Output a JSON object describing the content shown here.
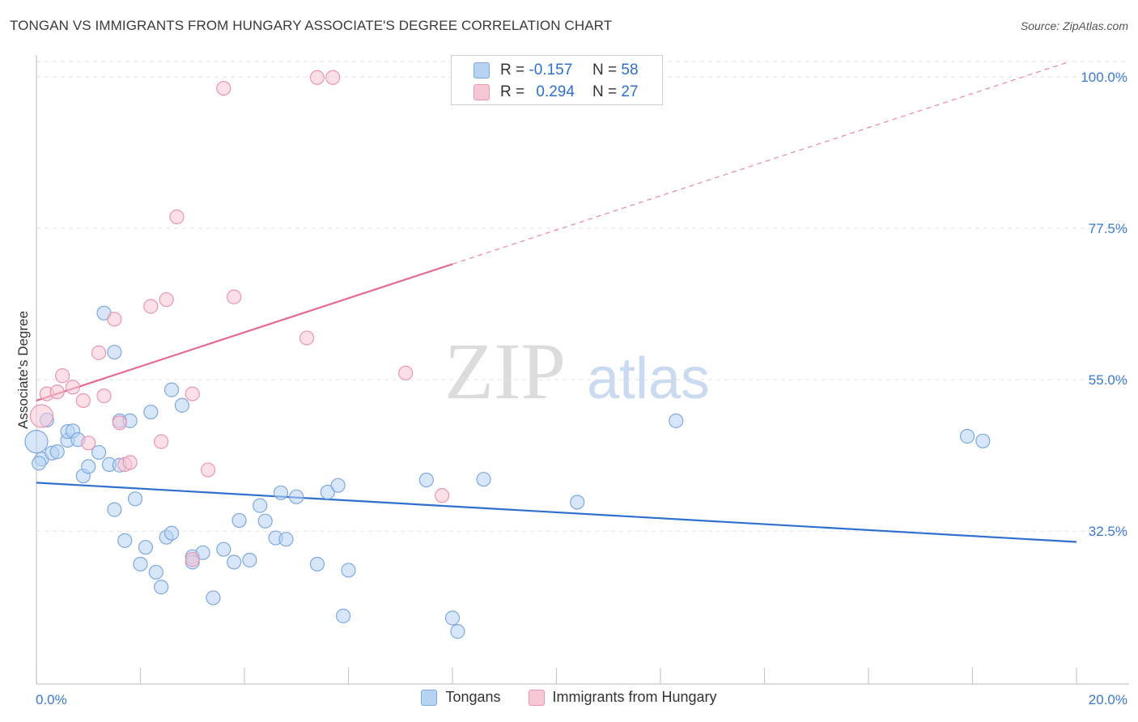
{
  "title": "TONGAN VS IMMIGRANTS FROM HUNGARY ASSOCIATE'S DEGREE CORRELATION CHART",
  "source": "Source: ZipAtlas.com",
  "watermark": {
    "zip": "ZIP",
    "atlas": "atlas"
  },
  "colors": {
    "blue_fill": "#b6d3f4",
    "blue_stroke": "#7ea9dd",
    "blue_line": "#2f6fce",
    "pink_fill": "#f8c7d6",
    "pink_stroke": "#ea96b1",
    "pink_line": "#e46b92",
    "tick_label": "#3b78d0"
  },
  "stats": [
    {
      "r_label": "R =",
      "r_value": "-0.157",
      "n_label": "N =",
      "n_value": "58"
    },
    {
      "r_label": "R =",
      "r_value": "0.294",
      "n_label": "N =",
      "n_value": "27"
    }
  ],
  "legend": [
    "Tongans",
    "Immigrants from Hungary"
  ],
  "chart_data": {
    "type": "scatter",
    "title": "TONGAN VS IMMIGRANTS FROM HUNGARY ASSOCIATE'S DEGREE CORRELATION CHART",
    "xlabel": "",
    "ylabel": "Associate's Degree",
    "xlim": [
      0,
      20
    ],
    "ylim": [
      11,
      103
    ],
    "x_tick_labels": [
      "0.0%",
      "20.0%"
    ],
    "y_ticks": [
      32.5,
      55.0,
      77.5,
      100.0
    ],
    "y_tick_labels": [
      "32.5%",
      "55.0%",
      "77.5%",
      "100.0%"
    ],
    "grid": true,
    "legend_position": "bottom-center",
    "series": [
      {
        "name": "Tongans",
        "color": "blue",
        "r": -0.157,
        "n": 58,
        "trend": {
          "x": [
            0,
            20
          ],
          "y": [
            39.7,
            30.9
          ],
          "dashed_from": null
        },
        "points": [
          [
            0.0,
            45.8
          ],
          [
            0.1,
            43.2
          ],
          [
            0.2,
            49.0
          ],
          [
            0.3,
            44.1
          ],
          [
            0.4,
            44.3
          ],
          [
            0.6,
            46.0
          ],
          [
            0.6,
            47.3
          ],
          [
            0.7,
            47.4
          ],
          [
            0.8,
            46.1
          ],
          [
            0.9,
            40.7
          ],
          [
            1.0,
            42.1
          ],
          [
            1.2,
            44.2
          ],
          [
            1.3,
            64.9
          ],
          [
            1.5,
            59.1
          ],
          [
            1.4,
            42.4
          ],
          [
            1.5,
            35.7
          ],
          [
            1.6,
            42.3
          ],
          [
            1.6,
            48.9
          ],
          [
            1.7,
            31.1
          ],
          [
            1.8,
            48.9
          ],
          [
            1.9,
            37.3
          ],
          [
            2.0,
            27.6
          ],
          [
            2.1,
            30.1
          ],
          [
            2.2,
            50.2
          ],
          [
            2.3,
            26.4
          ],
          [
            2.4,
            24.2
          ],
          [
            2.5,
            31.6
          ],
          [
            2.6,
            32.2
          ],
          [
            2.6,
            53.5
          ],
          [
            2.8,
            51.2
          ],
          [
            3.0,
            28.7
          ],
          [
            3.0,
            27.9
          ],
          [
            3.2,
            29.3
          ],
          [
            3.4,
            22.6
          ],
          [
            3.6,
            29.8
          ],
          [
            3.8,
            27.9
          ],
          [
            3.9,
            34.1
          ],
          [
            4.1,
            28.2
          ],
          [
            4.3,
            36.3
          ],
          [
            4.4,
            34.0
          ],
          [
            4.6,
            31.5
          ],
          [
            4.7,
            38.2
          ],
          [
            4.8,
            31.3
          ],
          [
            5.0,
            37.6
          ],
          [
            5.4,
            27.6
          ],
          [
            5.6,
            38.3
          ],
          [
            5.8,
            39.3
          ],
          [
            5.9,
            19.9
          ],
          [
            6.0,
            26.7
          ],
          [
            7.5,
            40.1
          ],
          [
            8.0,
            19.6
          ],
          [
            8.1,
            17.6
          ],
          [
            8.6,
            40.2
          ],
          [
            10.4,
            36.8
          ],
          [
            12.3,
            48.9
          ],
          [
            17.9,
            46.6
          ],
          [
            18.2,
            45.9
          ],
          [
            0.05,
            42.6
          ]
        ]
      },
      {
        "name": "Immigrants from Hungary",
        "color": "pink",
        "r": 0.294,
        "n": 27,
        "trend": {
          "x": [
            0,
            20
          ],
          "y": [
            51.9,
            102.6
          ],
          "dashed_from": 8.0
        },
        "points": [
          [
            0.1,
            49.6
          ],
          [
            0.2,
            52.9
          ],
          [
            0.4,
            53.2
          ],
          [
            0.5,
            55.6
          ],
          [
            0.7,
            53.9
          ],
          [
            0.9,
            51.9
          ],
          [
            1.0,
            45.6
          ],
          [
            1.2,
            59.0
          ],
          [
            1.3,
            52.6
          ],
          [
            1.5,
            64.0
          ],
          [
            1.6,
            48.6
          ],
          [
            1.7,
            42.4
          ],
          [
            1.8,
            42.7
          ],
          [
            2.2,
            65.9
          ],
          [
            2.4,
            45.8
          ],
          [
            2.5,
            66.9
          ],
          [
            2.7,
            79.2
          ],
          [
            3.0,
            28.3
          ],
          [
            3.0,
            52.9
          ],
          [
            3.3,
            41.6
          ],
          [
            3.6,
            98.3
          ],
          [
            3.8,
            67.3
          ],
          [
            5.2,
            61.2
          ],
          [
            5.4,
            99.9
          ],
          [
            5.7,
            99.9
          ],
          [
            7.1,
            56.0
          ],
          [
            7.8,
            37.8
          ]
        ]
      }
    ]
  }
}
